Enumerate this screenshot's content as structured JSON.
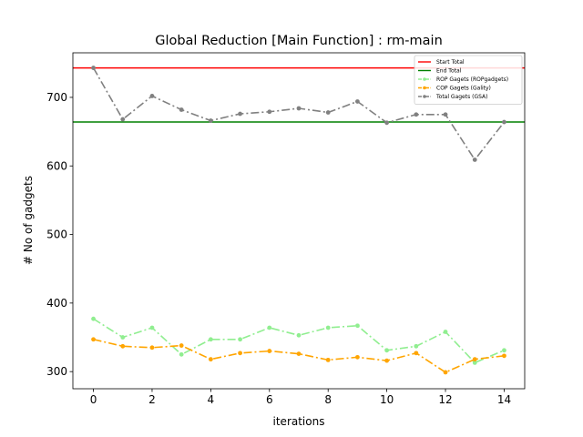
{
  "chart_data": {
    "type": "line",
    "title": "Global Reduction [Main Function] : rm-main",
    "xlabel": "iterations",
    "ylabel": "# No of gadgets",
    "xlim": [
      -0.7,
      14.7
    ],
    "ylim": [
      275,
      765
    ],
    "xticks": [
      0,
      2,
      4,
      6,
      8,
      10,
      12,
      14
    ],
    "yticks": [
      300,
      400,
      500,
      600,
      700
    ],
    "grid": false,
    "legend_position": "top-right",
    "hlines": [
      {
        "name": "Start Total",
        "value": 743,
        "color": "#ff0000"
      },
      {
        "name": "End Total",
        "value": 664,
        "color": "#008000"
      }
    ],
    "x": [
      0,
      1,
      2,
      3,
      4,
      5,
      6,
      7,
      8,
      9,
      10,
      11,
      12,
      13,
      14
    ],
    "series": [
      {
        "name": "ROP Gagets (ROPgadgets)",
        "color": "#90ee90",
        "values": [
          377,
          350,
          364,
          325,
          347,
          347,
          364,
          353,
          364,
          367,
          331,
          337,
          358,
          313,
          331
        ]
      },
      {
        "name": "COP Gagets (Gality)",
        "color": "#ffa500",
        "values": [
          347,
          337,
          335,
          338,
          318,
          327,
          330,
          326,
          317,
          321,
          316,
          327,
          299,
          318,
          323
        ]
      },
      {
        "name": "Total Gagets (GSA)",
        "color": "#808080",
        "values": [
          743,
          668,
          702,
          682,
          666,
          676,
          679,
          684,
          678,
          694,
          663,
          675,
          675,
          609,
          664
        ]
      }
    ]
  }
}
